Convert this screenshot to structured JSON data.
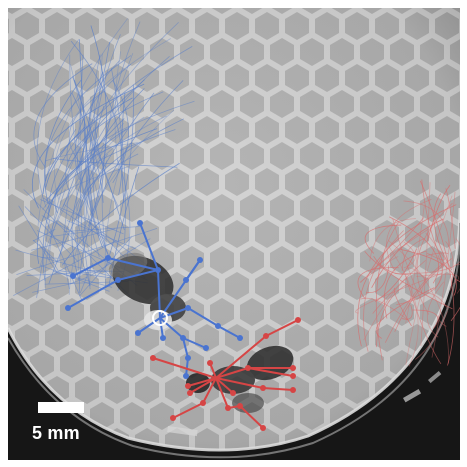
{
  "scale_bar": {
    "label": "5 mm"
  },
  "colors": {
    "background": "#1a1a1a",
    "comb_cell": "#9a9a9a",
    "comb_wall": "#dedede",
    "left_traces": "#5a7fc8",
    "right_traces": "#d86a6a",
    "blue_skeleton": "#4a74d0",
    "red_skeleton": "#d64545"
  }
}
